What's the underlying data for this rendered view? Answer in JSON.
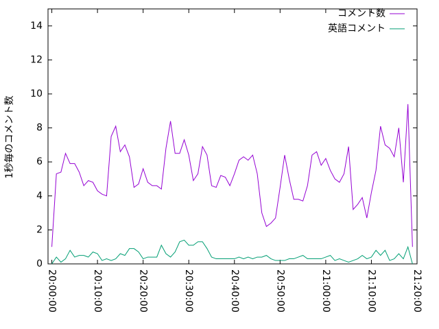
{
  "chart_data": {
    "type": "line",
    "ylabel": "1秒毎のコメント数",
    "x": [
      "20:00:00",
      "20:01:00",
      "20:02:00",
      "20:03:00",
      "20:04:00",
      "20:05:00",
      "20:06:00",
      "20:07:00",
      "20:08:00",
      "20:09:00",
      "20:10:00",
      "20:11:00",
      "20:12:00",
      "20:13:00",
      "20:14:00",
      "20:15:00",
      "20:16:00",
      "20:17:00",
      "20:18:00",
      "20:19:00",
      "20:20:00",
      "20:21:00",
      "20:22:00",
      "20:23:00",
      "20:24:00",
      "20:25:00",
      "20:26:00",
      "20:27:00",
      "20:28:00",
      "20:29:00",
      "20:30:00",
      "20:31:00",
      "20:32:00",
      "20:33:00",
      "20:34:00",
      "20:35:00",
      "20:36:00",
      "20:37:00",
      "20:38:00",
      "20:39:00",
      "20:40:00",
      "20:41:00",
      "20:42:00",
      "20:43:00",
      "20:44:00",
      "20:45:00",
      "20:46:00",
      "20:47:00",
      "20:48:00",
      "20:49:00",
      "20:50:00",
      "20:51:00",
      "20:52:00",
      "20:53:00",
      "20:54:00",
      "20:55:00",
      "20:56:00",
      "20:57:00",
      "20:58:00",
      "20:59:00",
      "21:00:00",
      "21:01:00",
      "21:02:00",
      "21:03:00",
      "21:04:00",
      "21:05:00",
      "21:06:00",
      "21:07:00",
      "21:08:00",
      "21:09:00",
      "21:10:00",
      "21:11:00",
      "21:12:00",
      "21:13:00",
      "21:14:00",
      "21:15:00",
      "21:16:00",
      "21:17:00",
      "21:18:00",
      "21:19:00"
    ],
    "series": [
      {
        "name": "コメント数",
        "color": "#9400d3",
        "values": [
          1.0,
          5.3,
          5.4,
          6.5,
          5.9,
          5.9,
          5.4,
          4.6,
          4.9,
          4.8,
          4.3,
          4.1,
          4.0,
          7.5,
          8.1,
          6.6,
          7.0,
          6.3,
          4.5,
          4.7,
          5.6,
          4.8,
          4.6,
          4.6,
          4.4,
          6.8,
          8.4,
          6.5,
          6.5,
          7.3,
          6.4,
          4.9,
          5.3,
          6.9,
          6.4,
          4.6,
          4.5,
          5.2,
          5.1,
          4.6,
          5.3,
          6.1,
          6.3,
          6.1,
          6.4,
          5.3,
          3.0,
          2.2,
          2.4,
          2.7,
          4.5,
          6.4,
          5.0,
          3.8,
          3.8,
          3.7,
          4.6,
          6.4,
          6.6,
          5.8,
          6.2,
          5.5,
          5.0,
          4.8,
          5.3,
          6.9,
          3.2,
          3.5,
          3.9,
          2.7,
          4.2,
          5.5,
          8.1,
          7.0,
          6.8,
          6.3,
          8.0,
          4.8,
          9.4,
          1.0
        ]
      },
      {
        "name": "英語コメント",
        "color": "#009e73",
        "values": [
          0.0,
          0.4,
          0.1,
          0.3,
          0.8,
          0.4,
          0.5,
          0.5,
          0.4,
          0.7,
          0.6,
          0.2,
          0.3,
          0.2,
          0.3,
          0.6,
          0.5,
          0.9,
          0.9,
          0.7,
          0.3,
          0.4,
          0.4,
          0.4,
          1.1,
          0.6,
          0.4,
          0.7,
          1.3,
          1.4,
          1.1,
          1.1,
          1.3,
          1.3,
          0.9,
          0.4,
          0.3,
          0.3,
          0.3,
          0.3,
          0.3,
          0.4,
          0.3,
          0.4,
          0.3,
          0.4,
          0.4,
          0.5,
          0.3,
          0.2,
          0.2,
          0.2,
          0.3,
          0.3,
          0.4,
          0.5,
          0.3,
          0.3,
          0.3,
          0.3,
          0.4,
          0.5,
          0.2,
          0.3,
          0.2,
          0.1,
          0.2,
          0.3,
          0.5,
          0.3,
          0.4,
          0.8,
          0.5,
          0.8,
          0.2,
          0.3,
          0.6,
          0.3,
          1.0,
          0.0
        ]
      }
    ],
    "xlim": [
      "19:59:10",
      "21:20:00"
    ],
    "xticks": [
      "20:00:00",
      "20:10:00",
      "20:20:00",
      "20:30:00",
      "20:40:00",
      "20:50:00",
      "21:00:00",
      "21:10:00",
      "21:20:00"
    ],
    "ylim": [
      0,
      15
    ],
    "yticks": [
      0,
      2,
      4,
      6,
      8,
      10,
      12,
      14
    ],
    "legend": "top-right"
  }
}
